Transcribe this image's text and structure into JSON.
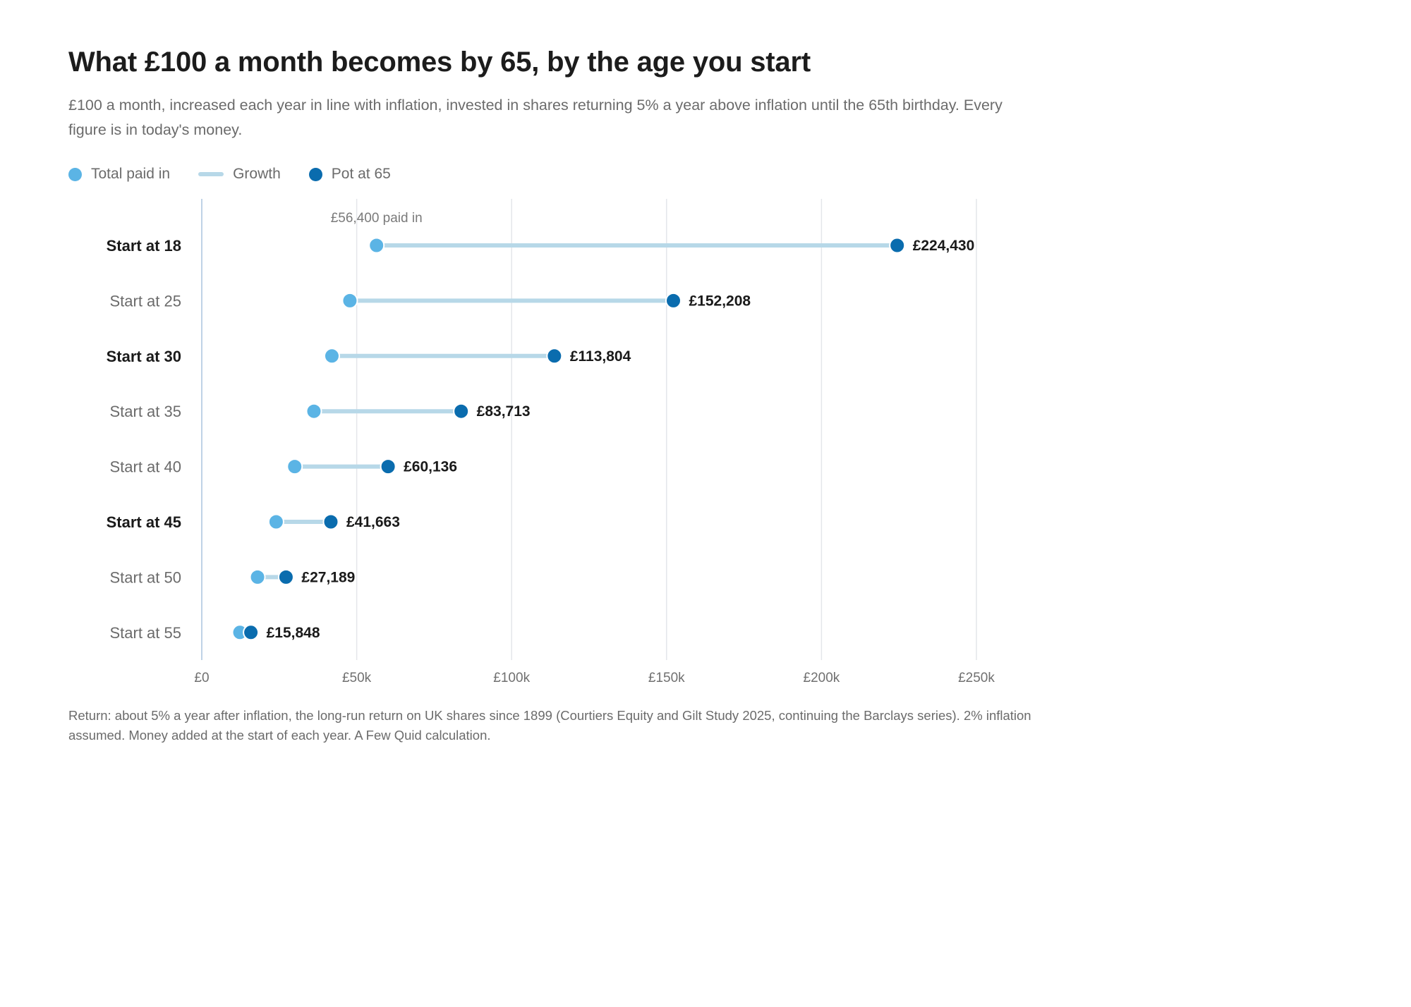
{
  "chart_data": {
    "type": "dumbbell",
    "title": "What £100 a month becomes by 65, by the age you start",
    "subtitle": "£100 a month, increased each year in line with inflation, invested in shares returning 5% a year above inflation until the 65th birthday. Every figure is in today's money.",
    "legend": {
      "placement": "top-left",
      "items": [
        {
          "label": "Total paid in",
          "marker": "dot",
          "color": "#5BB4E5"
        },
        {
          "label": "Growth",
          "marker": "line",
          "color": "#B7D8E8"
        },
        {
          "label": "Pot at 65",
          "marker": "dot",
          "color": "#0A6CAE"
        }
      ]
    },
    "categories": [
      "Start at 18",
      "Start at 25",
      "Start at 30",
      "Start at 35",
      "Start at 40",
      "Start at 45",
      "Start at 50",
      "Start at 55"
    ],
    "emphasized": [
      true,
      false,
      true,
      false,
      false,
      true,
      false,
      false
    ],
    "series": [
      {
        "name": "Total paid in",
        "values": [
          56400,
          47800,
          42000,
          36200,
          30000,
          24000,
          18000,
          12300
        ]
      },
      {
        "name": "Pot at 65",
        "values": [
          224430,
          152208,
          113804,
          83713,
          60136,
          41663,
          27189,
          15848
        ]
      }
    ],
    "value_labels": [
      "£224,430",
      "£152,208",
      "£113,804",
      "£83,713",
      "£60,136",
      "£41,663",
      "£27,189",
      "£15,848"
    ],
    "annotation": "£56,400 paid in",
    "x_ticks": [
      0,
      50000,
      100000,
      150000,
      200000,
      250000
    ],
    "x_tick_labels": [
      "£0",
      "£50k",
      "£100k",
      "£150k",
      "£200k",
      "£250k"
    ],
    "xlim": [
      0,
      250000
    ],
    "grid": true,
    "colors": {
      "paid_in": "#5BB4E5",
      "growth": "#B7D8E8",
      "pot": "#0A6CAE",
      "grid": "#E4E6EA",
      "axis": "#BFD3E6"
    }
  },
  "footnote": "Return: about 5% a year after inflation, the long-run return on UK shares since 1899 (Courtiers Equity and Gilt Study 2025, continuing the Barclays series). 2% inflation assumed. Money added at the start of each year. A Few Quid calculation."
}
